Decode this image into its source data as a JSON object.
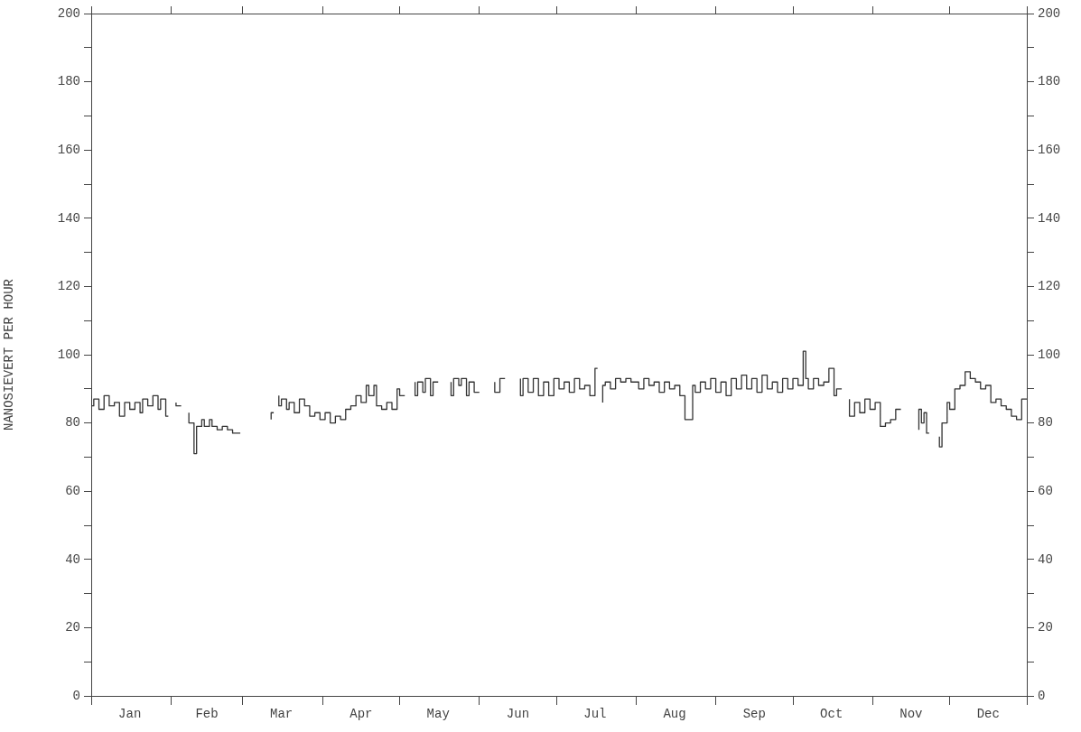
{
  "chart_data": {
    "type": "step",
    "ylabel": "NANOSIEVERT PER HOUR",
    "xlim": [
      "--01-01",
      "--12-31"
    ],
    "xticks": [
      {
        "value": "--01-01",
        "label": null
      },
      {
        "value": "--01-16",
        "label": "Jan"
      },
      {
        "value": "--02-01",
        "label": null
      },
      {
        "value": "--02-15",
        "label": "Feb"
      },
      {
        "value": "--03-01",
        "label": null
      },
      {
        "value": "--03-16",
        "label": "Mar"
      },
      {
        "value": "--04-01",
        "label": null
      },
      {
        "value": "--04-16",
        "label": "Apr"
      },
      {
        "value": "--05-01",
        "label": null
      },
      {
        "value": "--05-16",
        "label": "May"
      },
      {
        "value": "--06-01",
        "label": null
      },
      {
        "value": "--06-16",
        "label": "Jun"
      },
      {
        "value": "--07-01",
        "label": null
      },
      {
        "value": "--07-16",
        "label": "Jul"
      },
      {
        "value": "--08-01",
        "label": null
      },
      {
        "value": "--08-16",
        "label": "Aug"
      },
      {
        "value": "--09-01",
        "label": null
      },
      {
        "value": "--09-16",
        "label": "Sep"
      },
      {
        "value": "--10-01",
        "label": null
      },
      {
        "value": "--10-16",
        "label": "Oct"
      },
      {
        "value": "--11-01",
        "label": null
      },
      {
        "value": "--11-16",
        "label": "Nov"
      },
      {
        "value": "--12-01",
        "label": null
      },
      {
        "value": "--12-16",
        "label": "Dec"
      },
      {
        "value": "--12-31",
        "label": null
      }
    ],
    "ylim": [
      0,
      200
    ],
    "yticks": [
      0,
      {
        "value": 10,
        "label": null
      },
      20,
      {
        "value": 30,
        "label": null
      },
      40,
      {
        "value": 50,
        "label": null
      },
      60,
      {
        "value": 70,
        "label": null
      },
      80,
      {
        "value": 90,
        "label": null
      },
      100,
      {
        "value": 110,
        "label": null
      },
      120,
      {
        "value": 130,
        "label": null
      },
      140,
      {
        "value": 150,
        "label": null
      },
      160,
      {
        "value": 170,
        "label": null
      },
      180,
      {
        "value": 190,
        "label": null
      },
      200
    ],
    "y2lim": [
      0,
      200
    ],
    "y2ticks": [
      0,
      {
        "value": 10,
        "label": null
      },
      20,
      {
        "value": 30,
        "label": null
      },
      40,
      {
        "value": 50,
        "label": null
      },
      60,
      {
        "value": 70,
        "label": null
      },
      80,
      {
        "value": 90,
        "label": null
      },
      100,
      {
        "value": 110,
        "label": null
      },
      120,
      {
        "value": 130,
        "label": null
      },
      140,
      {
        "value": 150,
        "label": null
      },
      160,
      {
        "value": 170,
        "label": null
      },
      180,
      {
        "value": 190,
        "label": null
      },
      200
    ],
    "grid": false,
    "legend": false,
    "marker": "none",
    "line_style": "solid",
    "series": [
      {
        "color": "#333333",
        "x": [
          "--01-01",
          "--01-02",
          "--01-04",
          "--01-06",
          "--01-08",
          "--01-10",
          "--01-12",
          "--01-14",
          "--01-16",
          "--01-18",
          "--01-20",
          "--01-21",
          "--01-23",
          "--01-25",
          "--01-27",
          "--01-28",
          "--01-30",
          "--01-31",
          "--02-01",
          "--02-03",
          "--02-05",
          "--02-06",
          "--02-08",
          "--02-10",
          "--02-11",
          "--02-13",
          "--02-14",
          "--02-16",
          "--02-17",
          "--02-19",
          "--02-21",
          "--02-23",
          "--02-25",
          "--02-28",
          "--03-01",
          "--03-12",
          "--03-13",
          "--03-14",
          "--03-15",
          "--03-16",
          "--03-18",
          "--03-19",
          "--03-21",
          "--03-23",
          "--03-25",
          "--03-27",
          "--03-29",
          "--03-31",
          "--04-02",
          "--04-04",
          "--04-06",
          "--04-08",
          "--04-10",
          "--04-12",
          "--04-14",
          "--04-16",
          "--04-18",
          "--04-19",
          "--04-21",
          "--04-22",
          "--04-24",
          "--04-26",
          "--04-28",
          "--04-30",
          "--05-01",
          "--05-03",
          "--05-04",
          "--05-07",
          "--05-08",
          "--05-10",
          "--05-11",
          "--05-13",
          "--05-14",
          "--05-16",
          "--05-17",
          "--05-21",
          "--05-22",
          "--05-24",
          "--05-25",
          "--05-27",
          "--05-28",
          "--05-30",
          "--06-01",
          "--06-02",
          "--06-07",
          "--06-09",
          "--06-11",
          "--06-12",
          "--06-17",
          "--06-18",
          "--06-20",
          "--06-22",
          "--06-24",
          "--06-26",
          "--06-28",
          "--06-30",
          "--07-02",
          "--07-04",
          "--07-06",
          "--07-08",
          "--07-10",
          "--07-12",
          "--07-14",
          "--07-16",
          "--07-17",
          "--07-18",
          "--07-19",
          "--07-20",
          "--07-22",
          "--07-24",
          "--07-26",
          "--07-28",
          "--07-30",
          "--08-02",
          "--08-04",
          "--08-06",
          "--08-08",
          "--08-10",
          "--08-12",
          "--08-14",
          "--08-16",
          "--08-18",
          "--08-20",
          "--08-23",
          "--08-24",
          "--08-26",
          "--08-28",
          "--08-30",
          "--09-01",
          "--09-03",
          "--09-05",
          "--09-07",
          "--09-09",
          "--09-11",
          "--09-13",
          "--09-15",
          "--09-17",
          "--09-19",
          "--09-21",
          "--09-23",
          "--09-25",
          "--09-27",
          "--09-29",
          "--10-01",
          "--10-03",
          "--10-05",
          "--10-06",
          "--10-07",
          "--10-09",
          "--10-11",
          "--10-13",
          "--10-15",
          "--10-17",
          "--10-18",
          "--10-20",
          "--10-21",
          "--10-23",
          "--10-25",
          "--10-27",
          "--10-29",
          "--10-31",
          "--11-02",
          "--11-04",
          "--11-06",
          "--11-08",
          "--11-10",
          "--11-12",
          "--11-13",
          "--11-19",
          "--11-20",
          "--11-21",
          "--11-22",
          "--11-23",
          "--11-25",
          "--11-27",
          "--11-28",
          "--11-30",
          "--12-01",
          "--12-03",
          "--12-05",
          "--12-07",
          "--12-09",
          "--12-11",
          "--12-13",
          "--12-15",
          "--12-17",
          "--12-19",
          "--12-21",
          "--12-23",
          "--12-25",
          "--12-27",
          "--12-29",
          "--12-30",
          "--12-31"
        ],
        "values": [
          88,
          85,
          87,
          84,
          88,
          85,
          86,
          82,
          86,
          84,
          86,
          83,
          87,
          85,
          88,
          84,
          87,
          82,
          null,
          86,
          85,
          null,
          83,
          80,
          71,
          79,
          81,
          79,
          81,
          79,
          78,
          79,
          78,
          77,
          null,
          81,
          83,
          null,
          88,
          85,
          87,
          84,
          86,
          83,
          87,
          85,
          82,
          83,
          81,
          83,
          80,
          82,
          81,
          84,
          85,
          88,
          86,
          91,
          88,
          91,
          85,
          84,
          86,
          84,
          90,
          88,
          null,
          92,
          88,
          92,
          89,
          93,
          88,
          92,
          null,
          92,
          88,
          93,
          91,
          93,
          88,
          92,
          89,
          null,
          92,
          89,
          93,
          null,
          93,
          88,
          93,
          89,
          93,
          88,
          92,
          88,
          93,
          90,
          92,
          89,
          93,
          90,
          91,
          88,
          96,
          null,
          86,
          91,
          92,
          90,
          93,
          92,
          93,
          92,
          90,
          93,
          91,
          92,
          89,
          92,
          90,
          91,
          88,
          81,
          91,
          89,
          92,
          90,
          93,
          89,
          92,
          88,
          93,
          90,
          94,
          90,
          93,
          89,
          94,
          90,
          92,
          89,
          93,
          90,
          93,
          91,
          101,
          93,
          90,
          93,
          91,
          92,
          96,
          88,
          90,
          null,
          87,
          82,
          86,
          83,
          87,
          84,
          86,
          79,
          80,
          81,
          84,
          null,
          78,
          84,
          80,
          83,
          77,
          null,
          76,
          73,
          80,
          86,
          84,
          90,
          91,
          95,
          93,
          92,
          90,
          91,
          86,
          87,
          85,
          84,
          82,
          81,
          87,
          87
        ]
      }
    ]
  }
}
